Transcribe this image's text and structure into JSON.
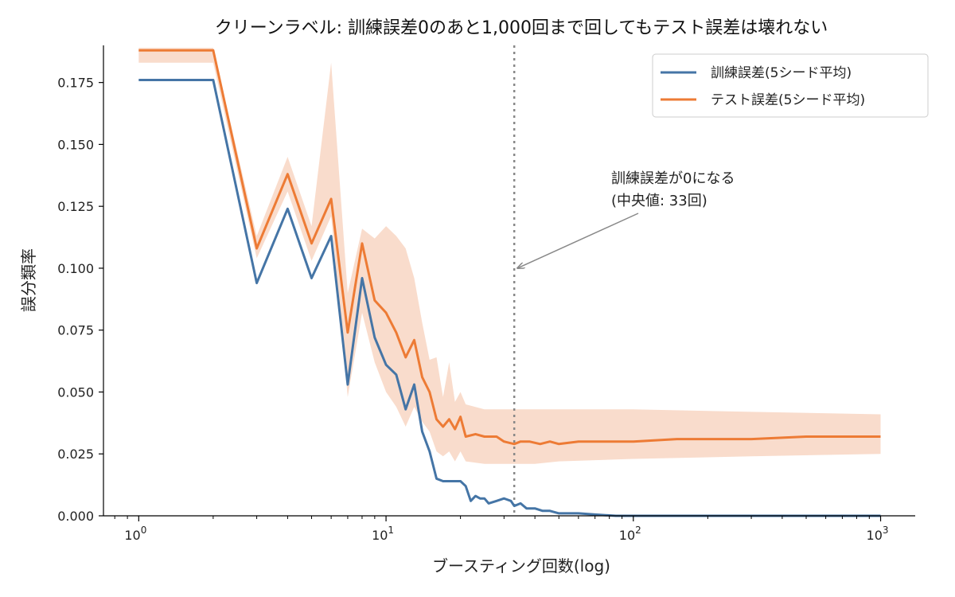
{
  "chart_data": {
    "type": "line",
    "title": "クリーンラベル: 訓練誤差0のあと1,000回まで回してもテスト誤差は壊れない",
    "xlabel": "ブースティング回数(log)",
    "ylabel": "誤分類率",
    "xscale": "log",
    "xlim": [
      0.72,
      1380
    ],
    "ylim": [
      0,
      0.19
    ],
    "x_ticks": [
      {
        "value": 1,
        "base": "10",
        "exp": "0"
      },
      {
        "value": 10,
        "base": "10",
        "exp": "1"
      },
      {
        "value": 100,
        "base": "10",
        "exp": "2"
      },
      {
        "value": 1000,
        "base": "10",
        "exp": "3"
      }
    ],
    "y_ticks": [
      {
        "value": 0,
        "label": "0.000"
      },
      {
        "value": 0.025,
        "label": "0.025"
      },
      {
        "value": 0.05,
        "label": "0.050"
      },
      {
        "value": 0.075,
        "label": "0.075"
      },
      {
        "value": 0.1,
        "label": "0.100"
      },
      {
        "value": 0.125,
        "label": "0.125"
      },
      {
        "value": 0.15,
        "label": "0.150"
      },
      {
        "value": 0.175,
        "label": "0.175"
      }
    ],
    "legend_position": "top-right",
    "grid": false,
    "series": [
      {
        "name": "訓練誤差(5シード平均)",
        "color": "#4575a6",
        "points": [
          [
            1,
            0.176
          ],
          [
            2,
            0.176
          ],
          [
            3,
            0.094
          ],
          [
            4,
            0.124
          ],
          [
            5,
            0.096
          ],
          [
            6,
            0.113
          ],
          [
            7,
            0.053
          ],
          [
            8,
            0.096
          ],
          [
            9,
            0.072
          ],
          [
            10,
            0.061
          ],
          [
            11,
            0.057
          ],
          [
            12,
            0.043
          ],
          [
            13,
            0.053
          ],
          [
            14,
            0.034
          ],
          [
            15,
            0.026
          ],
          [
            16,
            0.015
          ],
          [
            17,
            0.014
          ],
          [
            18,
            0.014
          ],
          [
            19,
            0.014
          ],
          [
            20,
            0.014
          ],
          [
            21,
            0.012
          ],
          [
            22,
            0.006
          ],
          [
            23,
            0.008
          ],
          [
            24,
            0.007
          ],
          [
            25,
            0.007
          ],
          [
            26,
            0.005
          ],
          [
            28,
            0.006
          ],
          [
            30,
            0.007
          ],
          [
            32,
            0.006
          ],
          [
            33,
            0.004
          ],
          [
            35,
            0.005
          ],
          [
            37,
            0.003
          ],
          [
            40,
            0.003
          ],
          [
            43,
            0.002
          ],
          [
            46,
            0.002
          ],
          [
            50,
            0.001
          ],
          [
            55,
            0.001
          ],
          [
            60,
            0.001
          ],
          [
            70,
            0.0005
          ],
          [
            85,
            0.0
          ],
          [
            100,
            0.0
          ],
          [
            300,
            0.0
          ],
          [
            1000,
            0.0
          ]
        ]
      },
      {
        "name": "テスト誤差(5シード平均)",
        "color": "#ed7b35",
        "points": [
          [
            1,
            0.188
          ],
          [
            2,
            0.188
          ],
          [
            3,
            0.108
          ],
          [
            4,
            0.138
          ],
          [
            5,
            0.11
          ],
          [
            6,
            0.128
          ],
          [
            7,
            0.074
          ],
          [
            8,
            0.11
          ],
          [
            9,
            0.087
          ],
          [
            10,
            0.082
          ],
          [
            11,
            0.074
          ],
          [
            12,
            0.064
          ],
          [
            13,
            0.071
          ],
          [
            14,
            0.056
          ],
          [
            15,
            0.05
          ],
          [
            16,
            0.039
          ],
          [
            17,
            0.036
          ],
          [
            18,
            0.039
          ],
          [
            19,
            0.035
          ],
          [
            20,
            0.04
          ],
          [
            21,
            0.032
          ],
          [
            23,
            0.033
          ],
          [
            25,
            0.032
          ],
          [
            28,
            0.032
          ],
          [
            30,
            0.03
          ],
          [
            33,
            0.029
          ],
          [
            35,
            0.03
          ],
          [
            38,
            0.03
          ],
          [
            42,
            0.029
          ],
          [
            46,
            0.03
          ],
          [
            50,
            0.029
          ],
          [
            60,
            0.03
          ],
          [
            80,
            0.03
          ],
          [
            100,
            0.03
          ],
          [
            150,
            0.031
          ],
          [
            200,
            0.031
          ],
          [
            300,
            0.031
          ],
          [
            500,
            0.032
          ],
          [
            700,
            0.032
          ],
          [
            1000,
            0.032
          ]
        ],
        "band": {
          "color": "#f9dccc",
          "upper": [
            [
              1,
              0.189
            ],
            [
              2,
              0.189
            ],
            [
              3,
              0.113
            ],
            [
              4,
              0.145
            ],
            [
              5,
              0.117
            ],
            [
              6,
              0.183
            ],
            [
              7,
              0.09
            ],
            [
              8,
              0.116
            ],
            [
              9,
              0.112
            ],
            [
              10,
              0.117
            ],
            [
              11,
              0.113
            ],
            [
              12,
              0.108
            ],
            [
              13,
              0.096
            ],
            [
              14,
              0.078
            ],
            [
              15,
              0.063
            ],
            [
              16,
              0.064
            ],
            [
              17,
              0.048
            ],
            [
              18,
              0.062
            ],
            [
              19,
              0.046
            ],
            [
              20,
              0.05
            ],
            [
              21,
              0.045
            ],
            [
              25,
              0.043
            ],
            [
              30,
              0.043
            ],
            [
              40,
              0.043
            ],
            [
              50,
              0.043
            ],
            [
              100,
              0.043
            ],
            [
              300,
              0.042
            ],
            [
              1000,
              0.041
            ]
          ],
          "lower": [
            [
              1,
              0.183
            ],
            [
              2,
              0.183
            ],
            [
              3,
              0.104
            ],
            [
              4,
              0.131
            ],
            [
              5,
              0.103
            ],
            [
              6,
              0.121
            ],
            [
              7,
              0.048
            ],
            [
              8,
              0.082
            ],
            [
              9,
              0.062
            ],
            [
              10,
              0.05
            ],
            [
              11,
              0.044
            ],
            [
              12,
              0.036
            ],
            [
              13,
              0.044
            ],
            [
              14,
              0.038
            ],
            [
              15,
              0.034
            ],
            [
              16,
              0.026
            ],
            [
              17,
              0.024
            ],
            [
              18,
              0.026
            ],
            [
              19,
              0.022
            ],
            [
              20,
              0.026
            ],
            [
              21,
              0.022
            ],
            [
              25,
              0.021
            ],
            [
              30,
              0.021
            ],
            [
              40,
              0.021
            ],
            [
              50,
              0.022
            ],
            [
              100,
              0.023
            ],
            [
              300,
              0.024
            ],
            [
              1000,
              0.025
            ]
          ]
        }
      }
    ],
    "vline": {
      "x": 33,
      "color": "#888888"
    },
    "annotation": {
      "lines": [
        "訓練誤差が0になる",
        "(中央値: 33回)"
      ],
      "arrow_target": [
        33,
        0.1
      ],
      "arrow_color": "#888888"
    }
  }
}
